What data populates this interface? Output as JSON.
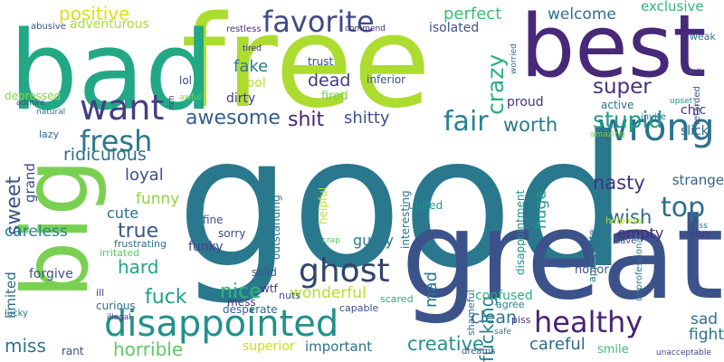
{
  "words": [
    {
      "text": "good",
      "color": "#2a788e"
    },
    {
      "text": "free",
      "color": "#addc30"
    },
    {
      "text": "bad",
      "color": "#22a884"
    },
    {
      "text": "great",
      "color": "#3b528b"
    },
    {
      "text": "best",
      "color": "#482878"
    },
    {
      "text": "big",
      "color": "#7ad151"
    },
    {
      "text": "disappointed",
      "color": "#21918c"
    },
    {
      "text": "wrong",
      "color": "#2c728e"
    },
    {
      "text": "favorite",
      "color": "#3e4a89"
    },
    {
      "text": "want",
      "color": "#433e85"
    },
    {
      "text": "fresh",
      "color": "#2a788e"
    },
    {
      "text": "ghost",
      "color": "#31446b"
    },
    {
      "text": "healthy",
      "color": "#482475"
    },
    {
      "text": "fair",
      "color": "#26828e"
    },
    {
      "text": "crazy",
      "color": "#2ab07f"
    },
    {
      "text": "positive",
      "color": "#d8e219"
    },
    {
      "text": "perfect",
      "color": "#3dbc74"
    },
    {
      "text": "welcome",
      "color": "#2e6e8e"
    },
    {
      "text": "super",
      "color": "#46327e"
    },
    {
      "text": "stupid",
      "color": "#1f9e89"
    },
    {
      "text": "top",
      "color": "#2d708e"
    },
    {
      "text": "awesome",
      "color": "#355f8d"
    },
    {
      "text": "shit",
      "color": "#482677"
    },
    {
      "text": "sweet",
      "color": "#3b528b"
    },
    {
      "text": "nasty",
      "color": "#46337e"
    },
    {
      "text": "wish",
      "color": "#31688e"
    },
    {
      "text": "worth",
      "color": "#2a788e"
    },
    {
      "text": "shitty",
      "color": "#3c508b"
    },
    {
      "text": "fake",
      "color": "#287d8e"
    },
    {
      "text": "true",
      "color": "#39558c"
    },
    {
      "text": "miss",
      "color": "#2c728e"
    },
    {
      "text": "fuck",
      "color": "#1fa088"
    },
    {
      "text": "nice",
      "color": "#32b67a"
    },
    {
      "text": "hard",
      "color": "#21a585"
    },
    {
      "text": "horrible",
      "color": "#5ec962"
    },
    {
      "text": "creative",
      "color": "#21918c"
    },
    {
      "text": "clean",
      "color": "#2a788e"
    },
    {
      "text": "careful",
      "color": "#31688e"
    },
    {
      "text": "sad",
      "color": "#2e6e8e"
    },
    {
      "text": "fight",
      "color": "#2c728e"
    },
    {
      "text": "ridiculous",
      "color": "#2e6e8e"
    },
    {
      "text": "dead",
      "color": "#443983"
    },
    {
      "text": "loyal",
      "color": "#3e4a89"
    },
    {
      "text": "mad",
      "color": "#2a788e"
    },
    {
      "text": "funny",
      "color": "#8fd744"
    },
    {
      "text": "cute",
      "color": "#2d708e"
    },
    {
      "text": "huge",
      "color": "#1f9e89"
    },
    {
      "text": "empty",
      "color": "#482878"
    },
    {
      "text": "strange",
      "color": "#33638d"
    },
    {
      "text": "careless",
      "color": "#25838e"
    },
    {
      "text": "wonderful",
      "color": "#b5de2b"
    },
    {
      "text": "important",
      "color": "#2d708e"
    },
    {
      "text": "superior",
      "color": "#c8e020"
    },
    {
      "text": "grand",
      "color": "#3e4a89"
    },
    {
      "text": "guilty",
      "color": "#2a788e"
    },
    {
      "text": "limited",
      "color": "#31688e"
    },
    {
      "text": "fucking",
      "color": "#26828e"
    },
    {
      "text": "confused",
      "color": "#29af7f"
    },
    {
      "text": "exclusive",
      "color": "#32b67a"
    },
    {
      "text": "adventurous",
      "color": "#a8db34"
    },
    {
      "text": "isolated",
      "color": "#3b528b"
    },
    {
      "text": "trust",
      "color": "#3e4a89"
    },
    {
      "text": "cool",
      "color": "#c0df25"
    },
    {
      "text": "dirty",
      "color": "#443a83"
    },
    {
      "text": "fired",
      "color": "#7ad151"
    },
    {
      "text": "proud",
      "color": "#46327e"
    },
    {
      "text": "inferior",
      "color": "#3b528b"
    },
    {
      "text": "active",
      "color": "#2c728e"
    },
    {
      "text": "chic",
      "color": "#46327e"
    },
    {
      "text": "slick",
      "color": "#31688e"
    },
    {
      "text": "forgive",
      "color": "#3b528b"
    },
    {
      "text": "depressed",
      "color": "#86d549"
    },
    {
      "text": "lol",
      "color": "#3e4a89"
    },
    {
      "text": "fine",
      "color": "#3b528b"
    },
    {
      "text": "sorry",
      "color": "#3e4a89"
    },
    {
      "text": "funky",
      "color": "#414487"
    },
    {
      "text": "solid",
      "color": "#3b528b"
    },
    {
      "text": "wtf",
      "color": "#46327e"
    },
    {
      "text": "mess",
      "color": "#443983"
    },
    {
      "text": "nuts",
      "color": "#3b528b"
    },
    {
      "text": "desperate",
      "color": "#32648e"
    },
    {
      "text": "scared",
      "color": "#27ad81"
    },
    {
      "text": "agree",
      "color": "#26828e"
    },
    {
      "text": "piss",
      "color": "#443983"
    },
    {
      "text": "smile",
      "color": "#3dbc74"
    },
    {
      "text": "rant",
      "color": "#3e4a89"
    },
    {
      "text": "honor",
      "color": "#3b528b"
    },
    {
      "text": "united",
      "color": "#21918c"
    },
    {
      "text": "helpful",
      "color": "#c0df25"
    },
    {
      "text": "interesting",
      "color": "#2c728e"
    },
    {
      "text": "outstanding",
      "color": "#2e6e8e"
    },
    {
      "text": "disappointment",
      "color": "#21918c"
    },
    {
      "text": "appreciate",
      "color": "#2c728e"
    },
    {
      "text": "unprofessional",
      "color": "#2a788e"
    },
    {
      "text": "shameful",
      "color": "#2d708e"
    },
    {
      "text": "curious",
      "color": "#2d708e"
    },
    {
      "text": "frustrating",
      "color": "#2e6e8e"
    },
    {
      "text": "irritated",
      "color": "#5ec962"
    },
    {
      "text": "ill",
      "color": "#3e4a89"
    },
    {
      "text": "lazy",
      "color": "#2e6e8e"
    },
    {
      "text": "abusive",
      "color": "#3b528b"
    },
    {
      "text": "restless",
      "color": "#46327e"
    },
    {
      "text": "commend",
      "color": "#482878"
    },
    {
      "text": "tired",
      "color": "#46327e"
    },
    {
      "text": "anti",
      "color": "#3e4a89"
    },
    {
      "text": "weak",
      "color": "#2a788e"
    },
    {
      "text": "retarded",
      "color": "#3b528b"
    },
    {
      "text": "worried",
      "color": "#2e6e8e"
    },
    {
      "text": "upset",
      "color": "#21918c"
    },
    {
      "text": "invite",
      "color": "#2d708e"
    },
    {
      "text": "amazing",
      "color": "#7ad151"
    },
    {
      "text": "helpless",
      "color": "#bddf26"
    },
    {
      "text": "ass",
      "color": "#2e6e8e"
    },
    {
      "text": "alive",
      "color": "#443983"
    },
    {
      "text": "save",
      "color": "#3e4a89"
    },
    {
      "text": "unacceptable",
      "color": "#414487"
    },
    {
      "text": "dreams",
      "color": "#3b528b"
    },
    {
      "text": "safe",
      "color": "#2e6e8e"
    },
    {
      "text": "capable",
      "color": "#3e4a89"
    },
    {
      "text": "crap",
      "color": "#5ec962"
    },
    {
      "text": "illegal",
      "color": "#443983"
    },
    {
      "text": "lucky",
      "color": "#2a788e"
    },
    {
      "text": "admire",
      "color": "#3e4a89"
    },
    {
      "text": "natural",
      "color": "#2e6e8e"
    },
    {
      "text": "awful",
      "color": "#86d549"
    },
    {
      "text": "rich",
      "color": "#443983"
    }
  ]
}
